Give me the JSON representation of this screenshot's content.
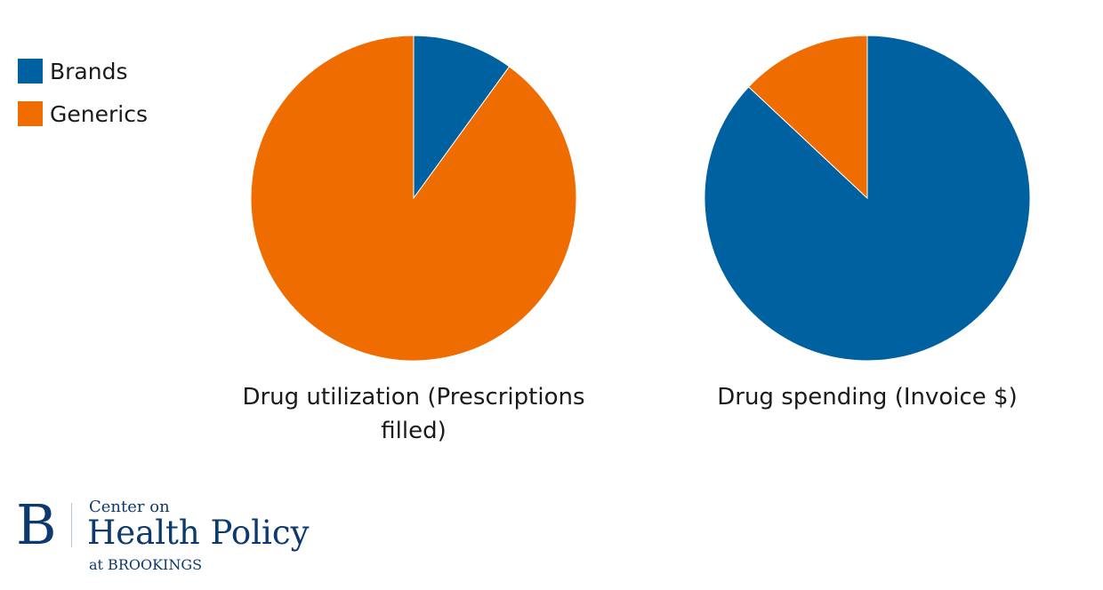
{
  "chart_data": [
    {
      "type": "pie",
      "title": "Drug utilization (Prescriptions filled)",
      "categories": [
        "Brands",
        "Generics"
      ],
      "values": [
        10,
        90
      ],
      "unit": "%"
    },
    {
      "type": "pie",
      "title": "Drug spending (Invoice $)",
      "categories": [
        "Brands",
        "Generics"
      ],
      "values": [
        87,
        13
      ],
      "unit": "%"
    }
  ],
  "legend": {
    "placement": "top-left",
    "items": [
      {
        "label": "Brands",
        "color": "#0061a0"
      },
      {
        "label": "Generics",
        "color": "#ef6c00"
      }
    ]
  },
  "colors": {
    "Brands": "#0061a0",
    "Generics": "#ef6c00"
  },
  "logo": {
    "mark": "B",
    "line1": "Center on",
    "line2": "Health Policy",
    "line3": "at BROOKINGS"
  }
}
